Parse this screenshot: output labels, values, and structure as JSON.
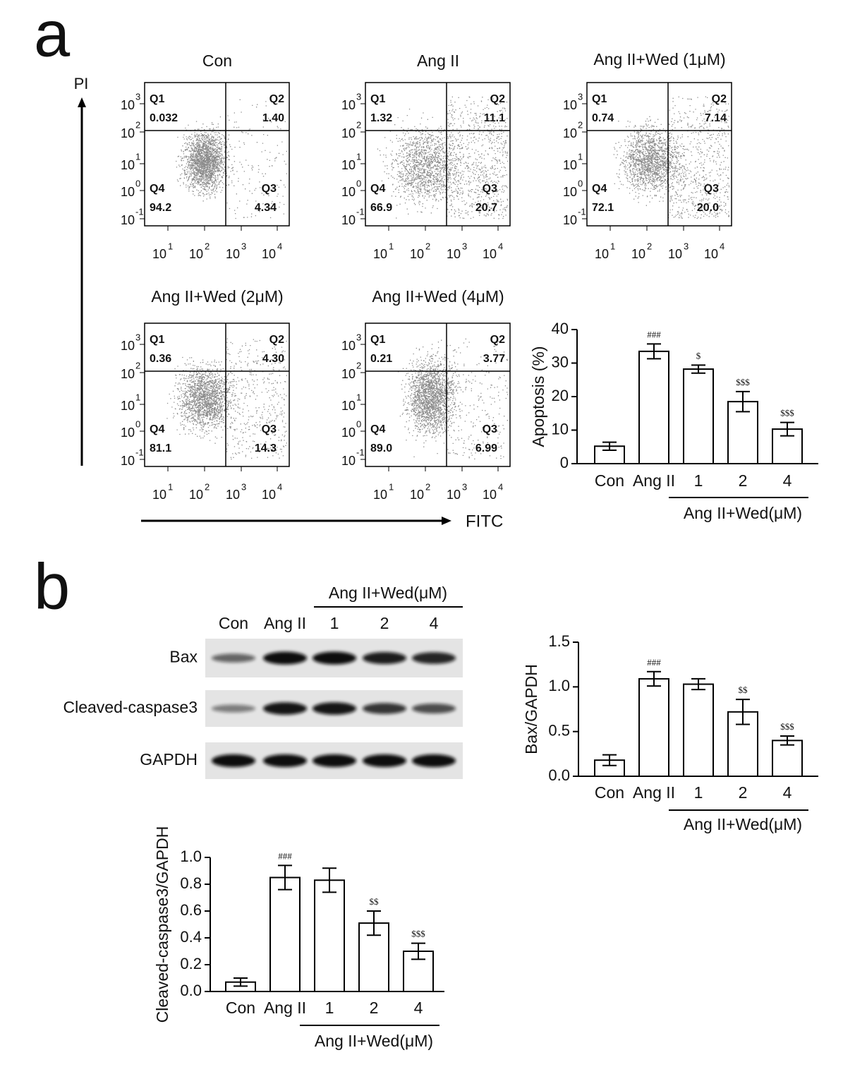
{
  "panel_labels": [
    "a",
    "b"
  ],
  "flow_cytometry": {
    "y_axis_label": "PI",
    "x_axis_label": "FITC",
    "tick_base": "10",
    "x_tick_exponents": [
      "1",
      "2",
      "3",
      "4"
    ],
    "y_tick_exponents": [
      "3",
      "2",
      "1",
      "0",
      "-1"
    ],
    "plots": [
      {
        "title": "Con",
        "quadrants": [
          {
            "name": "Q1",
            "value": "0.032"
          },
          {
            "name": "Q2",
            "value": "1.40"
          },
          {
            "name": "Q3",
            "value": "4.34"
          },
          {
            "name": "Q4",
            "value": "94.2"
          }
        ]
      },
      {
        "title": "Ang II",
        "quadrants": [
          {
            "name": "Q1",
            "value": "1.32"
          },
          {
            "name": "Q2",
            "value": "11.1"
          },
          {
            "name": "Q3",
            "value": "20.7"
          },
          {
            "name": "Q4",
            "value": "66.9"
          }
        ]
      },
      {
        "title": "Ang II+Wed (1μM)",
        "quadrants": [
          {
            "name": "Q1",
            "value": "0.74"
          },
          {
            "name": "Q2",
            "value": "7.14"
          },
          {
            "name": "Q3",
            "value": "20.0"
          },
          {
            "name": "Q4",
            "value": "72.1"
          }
        ]
      },
      {
        "title": "Ang II+Wed (2μM)",
        "quadrants": [
          {
            "name": "Q1",
            "value": "0.36"
          },
          {
            "name": "Q2",
            "value": "4.30"
          },
          {
            "name": "Q3",
            "value": "14.3"
          },
          {
            "name": "Q4",
            "value": "81.1"
          }
        ]
      },
      {
        "title": "Ang II+Wed (4μM)",
        "quadrants": [
          {
            "name": "Q1",
            "value": "0.21"
          },
          {
            "name": "Q2",
            "value": "3.77"
          },
          {
            "name": "Q3",
            "value": "6.99"
          },
          {
            "name": "Q4",
            "value": "89.0"
          }
        ]
      }
    ]
  },
  "western_blot": {
    "lanes": [
      "Con",
      "Ang II",
      "1",
      "2",
      "4"
    ],
    "group_label": "Ang II+Wed(μM)",
    "rows": [
      "Bax",
      "Cleaved-caspase3",
      "GAPDH"
    ]
  },
  "chart_data": [
    {
      "type": "bar",
      "y_label": "Apoptosis (%)",
      "categories": [
        "Con",
        "Ang II",
        "1",
        "2",
        "4"
      ],
      "values": [
        5.2,
        33.5,
        28.2,
        18.5,
        10.3
      ],
      "errors": [
        1.2,
        2.2,
        1.2,
        3.0,
        2.0
      ],
      "annotations": [
        null,
        "###",
        "$",
        "$$$",
        "$$$"
      ],
      "group_label": "Ang II+Wed(μM)",
      "color": "#ffffff",
      "ylim": [
        0,
        40
      ],
      "yticks": [
        0,
        10,
        20,
        30,
        40
      ]
    },
    {
      "type": "bar",
      "y_label": "Bax/GAPDH",
      "categories": [
        "Con",
        "Ang II",
        "1",
        "2",
        "4"
      ],
      "values": [
        0.18,
        1.09,
        1.03,
        0.72,
        0.4
      ],
      "errors": [
        0.06,
        0.08,
        0.06,
        0.14,
        0.05
      ],
      "annotations": [
        null,
        "###",
        null,
        "$$",
        "$$$"
      ],
      "group_label": "Ang II+Wed(μM)",
      "color": "#ffffff",
      "ylim": [
        0,
        1.5
      ],
      "yticks": [
        {
          "value": 0,
          "label": "0.0"
        },
        0.5,
        {
          "value": 1,
          "label": "1.0"
        },
        1.5
      ]
    },
    {
      "type": "bar",
      "y_label": "Cleaved-caspase3/GAPDH",
      "categories": [
        "Con",
        "Ang II",
        "1",
        "2",
        "4"
      ],
      "values": [
        0.07,
        0.85,
        0.83,
        0.51,
        0.3
      ],
      "errors": [
        0.03,
        0.09,
        0.09,
        0.09,
        0.06
      ],
      "annotations": [
        null,
        "###",
        null,
        "$$",
        "$$$"
      ],
      "group_label": "Ang II+Wed(μM)",
      "color": "#ffffff",
      "ylim": [
        0,
        1
      ],
      "yticks": [
        {
          "value": 0,
          "label": "0.0"
        },
        0.2,
        0.4,
        0.6,
        0.8,
        {
          "value": 1,
          "label": "1.0"
        }
      ]
    }
  ]
}
